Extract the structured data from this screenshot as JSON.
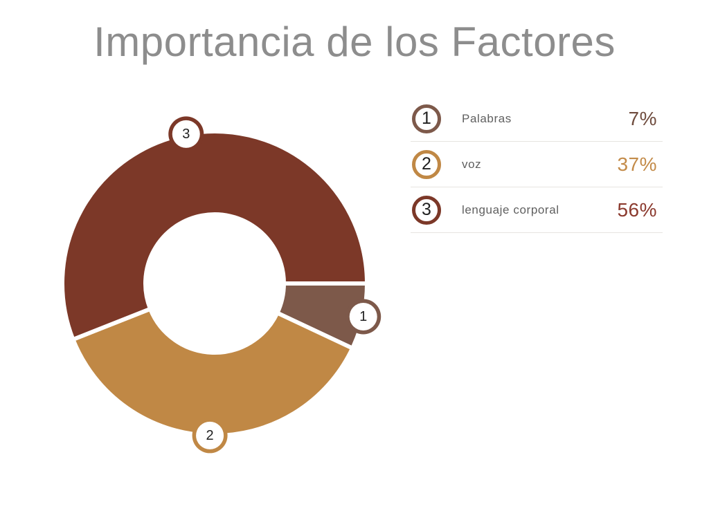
{
  "title": "Importancia de los Factores",
  "title_color": "#8d8d8d",
  "background_color": "#ffffff",
  "divider_color": "#e6e4e0",
  "label_color": "#5f5f5f",
  "number_color": "#1f1f1f",
  "chart_data": {
    "type": "pie",
    "subtype": "donut",
    "title": "Importancia de los Factores",
    "start_angle_deg": 0,
    "direction": "clockwise",
    "legend_position": "right",
    "categories": [
      "Palabras",
      "voz",
      "lenguaje corporal"
    ],
    "values": [
      7,
      37,
      56
    ],
    "segments": [
      {
        "id": "1",
        "label": "Palabras",
        "value_pct": 7,
        "pct_label": "7%",
        "color": "#7d594a",
        "pct_color": "#6f4c3e",
        "marker_icon": "numbered-circle-marker"
      },
      {
        "id": "2",
        "label": "voz",
        "value_pct": 37,
        "pct_label": "37%",
        "color": "#c08845",
        "pct_color": "#c38b49",
        "marker_icon": "numbered-circle-marker"
      },
      {
        "id": "3",
        "label": "lenguaje corporal",
        "value_pct": 56,
        "pct_label": "56%",
        "color": "#7c3828",
        "pct_color": "#8b3a2e",
        "marker_icon": "numbered-circle-marker"
      }
    ]
  }
}
